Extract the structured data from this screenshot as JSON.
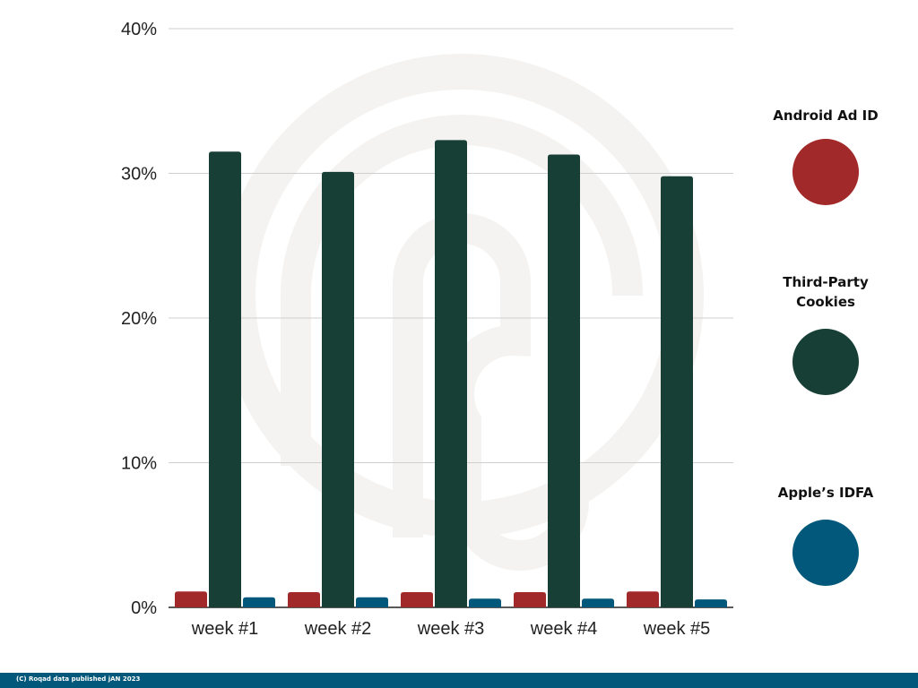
{
  "chart_data": {
    "type": "bar",
    "categories": [
      "week #1",
      "week #2",
      "week #3",
      "week #4",
      "week #5"
    ],
    "series": [
      {
        "name": "Android Ad ID",
        "color": "#a1292a",
        "values": [
          1.1,
          1.05,
          1.05,
          1.05,
          1.1
        ]
      },
      {
        "name": "Third-Party Cookies",
        "color": "#173f36",
        "values": [
          31.5,
          30.1,
          32.3,
          31.3,
          29.8
        ]
      },
      {
        "name": "Apple's IDFA",
        "color": "#02587a",
        "values": [
          0.7,
          0.7,
          0.6,
          0.6,
          0.55
        ]
      }
    ],
    "ylim": [
      0,
      40
    ],
    "yticks": [
      0,
      10,
      20,
      30,
      40
    ],
    "ytick_labels": [
      "0%",
      "10%",
      "20%",
      "30%",
      "40%"
    ],
    "grid": true,
    "legend_placement": "right",
    "title": "",
    "xlabel": "",
    "ylabel": ""
  },
  "legend": {
    "items": [
      {
        "label": "Android Ad ID",
        "color": "#a1292a"
      },
      {
        "label": "Third-Party Cookies",
        "color": "#173f36"
      },
      {
        "label": "Apple’s IDFA",
        "color": "#02587a"
      }
    ]
  },
  "footer": {
    "text": "(C) Roqad data published jAN 2023",
    "color": "#02587a"
  },
  "watermark": {
    "icon": "roqad-logo-watermark-icon"
  }
}
